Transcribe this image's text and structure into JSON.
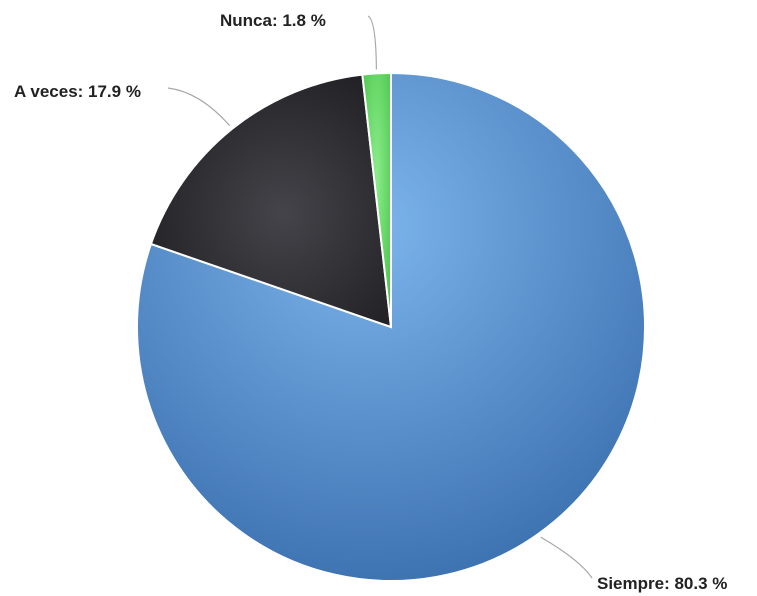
{
  "chart_data": {
    "type": "pie",
    "title": "",
    "unit": "%",
    "slices": [
      {
        "label": "Siempre",
        "value": 80.3,
        "label_text": "Siempre: 80.3 %",
        "color": "#4f88c8"
      },
      {
        "label": "A veces",
        "value": 17.9,
        "label_text": "A veces: 17.9 %",
        "color": "#2a292e"
      },
      {
        "label": "Nunca",
        "value": 1.8,
        "label_text": "Nunca: 1.8 %",
        "color": "#5ad35a"
      }
    ],
    "start_angle": "12 o'clock",
    "direction": "clockwise",
    "legend": "none",
    "data_labels": "outside with leader lines"
  }
}
